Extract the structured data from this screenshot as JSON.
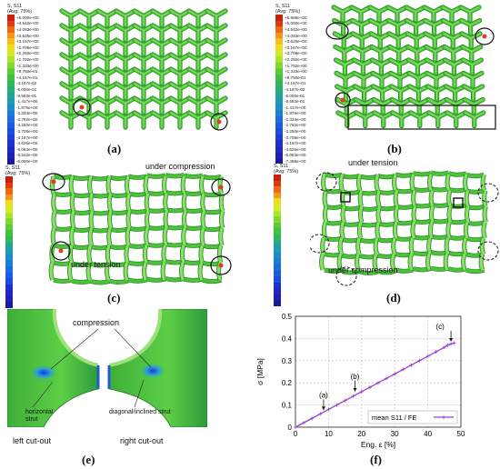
{
  "panels": {
    "a": {
      "label": "(a)",
      "legend_title": "S, S11",
      "legend_subtitle": "(Avg: 75%)",
      "legend_values": [
        "+5.000e+00",
        "+4.542e+00",
        "+4.083e+00",
        "+3.625e+00",
        "+3.167e+00",
        "+2.708e+00",
        "+2.250e+00",
        "+1.792e+00",
        "+1.333e+00",
        "+8.750e-01",
        "+4.167e-01",
        "-4.167e-02",
        "-5.000e-01",
        "-9.583e-01",
        "-1.417e+00",
        "-1.875e+00",
        "-2.333e+00",
        "-2.792e+00",
        "-3.250e+00",
        "-3.708e+00",
        "-4.167e+00",
        "-4.625e+00",
        "-5.083e+00",
        "-5.542e+00",
        "-6.000e+00"
      ]
    },
    "b": {
      "label": "(b)",
      "legend_title": "S, S11",
      "legend_subtitle": "(Avg: 75%)",
      "legend_values": [
        "+5.686e+00",
        "+5.000e+00",
        "+4.542e+00",
        "+4.083e+00",
        "+3.625e+00",
        "+3.167e+00",
        "+2.708e+00",
        "+2.250e+00",
        "+1.792e+00",
        "+1.333e+00",
        "+8.750e-01",
        "+4.167e-01",
        "-4.167e-02",
        "-5.000e-01",
        "-9.583e-01",
        "-1.417e+00",
        "-1.875e+00",
        "-2.333e+00",
        "-2.792e+00",
        "-3.250e+00",
        "-3.708e+00",
        "-4.167e+00",
        "-4.625e+00",
        "-5.083e+00",
        "-7.499e+00"
      ]
    },
    "c": {
      "label": "(c)",
      "legend_title": "S, S11",
      "legend_subtitle": "(Avg: 75%)",
      "annotation_top": "under compression",
      "annotation_bottom": "under tension"
    },
    "d": {
      "label": "(d)",
      "legend_title": "S, S11",
      "legend_subtitle": "(Avg: 75%)",
      "annotation_top": "under tension",
      "annotation_bottom": "under compression"
    },
    "e": {
      "label": "(e)",
      "compression": "compression",
      "horizontal_strut": "horizontal strut",
      "diagonal_strut": "diagonal/inclined strut",
      "left_cutout": "left cut-out",
      "right_cutout": "right cut-out"
    },
    "f": {
      "label": "(f)"
    }
  },
  "colors": {
    "lattice_green": "#4cc43a",
    "lattice_light": "#8be06a",
    "lattice_dark": "#2f8d2a",
    "stress_red": "#e83a1f",
    "stress_blue": "#1a3ad0",
    "curve": "#9b3fd0"
  },
  "chart_data": {
    "type": "line",
    "xlabel": "Eng. ε [%]",
    "ylabel": "σ [MPa]",
    "xlim": [
      0,
      50
    ],
    "ylim": [
      0,
      0.5
    ],
    "xticks": [
      "0",
      "10",
      "20",
      "30",
      "40",
      "50"
    ],
    "yticks": [
      "0",
      "0.1",
      "0.2",
      "0.3",
      "0.4",
      "0.5"
    ],
    "grid": true,
    "legend_placement": "bottom-right",
    "series": [
      {
        "name": "mean S11 / FE",
        "x": [
          0,
          2.5,
          5,
          7.5,
          10,
          12.5,
          15,
          17.5,
          20,
          22.5,
          25,
          27.5,
          30,
          32.5,
          35,
          37.5,
          40,
          42.5,
          45,
          46,
          47,
          48
        ],
        "y": [
          0,
          0.02,
          0.04,
          0.06,
          0.08,
          0.1,
          0.12,
          0.14,
          0.16,
          0.18,
          0.2,
          0.22,
          0.24,
          0.26,
          0.28,
          0.3,
          0.32,
          0.34,
          0.36,
          0.37,
          0.375,
          0.38
        ]
      }
    ],
    "annotations": [
      {
        "text": "(a)",
        "x": 8.5,
        "y": 0.068
      },
      {
        "text": "(b)",
        "x": 18,
        "y": 0.152
      },
      {
        "text": "(c)",
        "x": 47,
        "y": 0.377
      }
    ]
  }
}
